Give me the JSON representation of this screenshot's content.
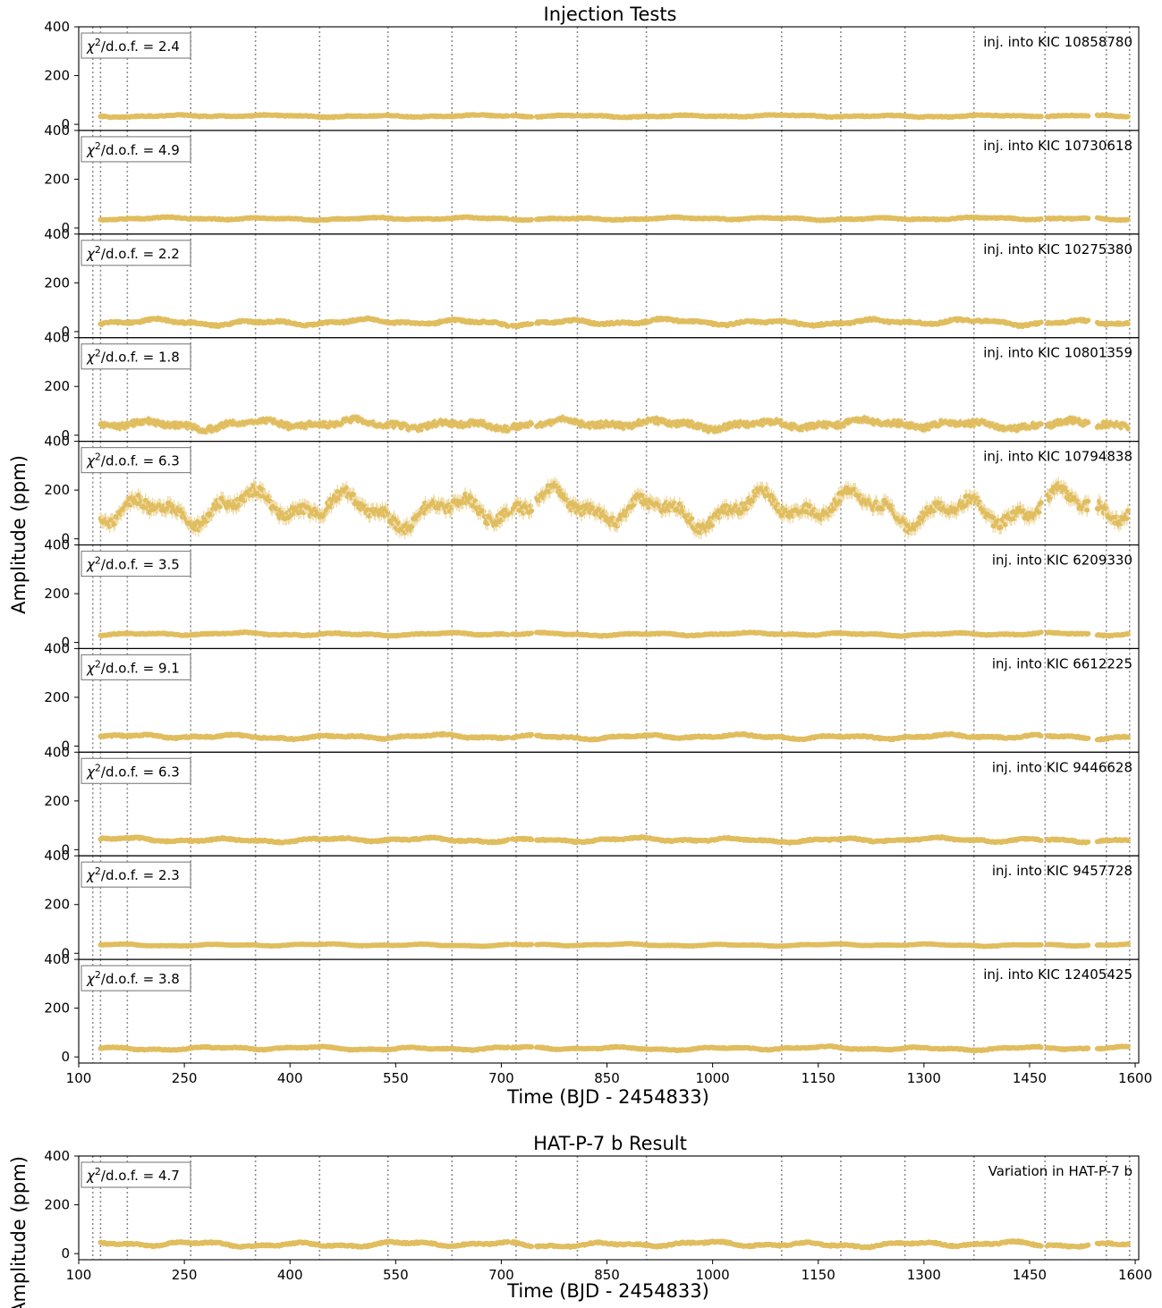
{
  "figure": {
    "title_main": "Injection Tests",
    "title_result": "HAT-P-7 b Result",
    "xlabel": "Time (BJD - 2454833)",
    "ylabel": "Amplitude (ppm)"
  },
  "style": {
    "point_color": "#e0bd5e",
    "error_color": "#f0deae",
    "vline_color": "#8c8c8c"
  },
  "chart_data": {
    "type": "scatter",
    "xlim": [
      100,
      1605
    ],
    "ylim": [
      -25,
      400
    ],
    "x_ticks": [
      100,
      250,
      400,
      550,
      700,
      850,
      1000,
      1150,
      1300,
      1450,
      1600
    ],
    "y_ticks": [
      0,
      200,
      400
    ],
    "grid": false,
    "quarter_boundaries": [
      120,
      131,
      169,
      259,
      351,
      442,
      539,
      630,
      721,
      808,
      906,
      1098,
      1182,
      1273,
      1371,
      1472,
      1559,
      1592
    ],
    "gap_ranges": [
      [
        711,
        715
      ],
      [
        743,
        749
      ],
      [
        1467,
        1475
      ],
      [
        1534,
        1545
      ],
      [
        1568,
        1570
      ]
    ],
    "panels": [
      {
        "label": "inj. into KIC 10858780",
        "chi2": "2.4",
        "mean": 34,
        "variability": 5,
        "noise": 2
      },
      {
        "label": "inj. into KIC 10730618",
        "chi2": "4.9",
        "mean": 38,
        "variability": 6,
        "noise": 2
      },
      {
        "label": "inj. into KIC 10275380",
        "chi2": "2.2",
        "mean": 38,
        "variability": 14,
        "noise": 4
      },
      {
        "label": "inj. into KIC 10801359",
        "chi2": "1.8",
        "mean": 45,
        "variability": 20,
        "noise": 10
      },
      {
        "label": "inj. into KIC 10794838",
        "chi2": "6.3",
        "mean": 125,
        "variability": 80,
        "noise": 20
      },
      {
        "label": "inj. into KIC 6209330",
        "chi2": "3.5",
        "mean": 34,
        "variability": 7,
        "noise": 2
      },
      {
        "label": "inj. into KIC 6612225",
        "chi2": "9.1",
        "mean": 38,
        "variability": 10,
        "noise": 3
      },
      {
        "label": "inj. into KIC 9446628",
        "chi2": "6.3",
        "mean": 40,
        "variability": 10,
        "noise": 3
      },
      {
        "label": "inj. into KIC 9457728",
        "chi2": "2.3",
        "mean": 34,
        "variability": 5,
        "noise": 1
      },
      {
        "label": "inj. into KIC 12405425",
        "chi2": "3.8",
        "mean": 35,
        "variability": 8,
        "noise": 2
      }
    ],
    "result_panel": {
      "label": "Variation in HAT-P-7 b",
      "chi2": "4.7",
      "mean": 38,
      "variability": 12,
      "noise": 3
    }
  }
}
